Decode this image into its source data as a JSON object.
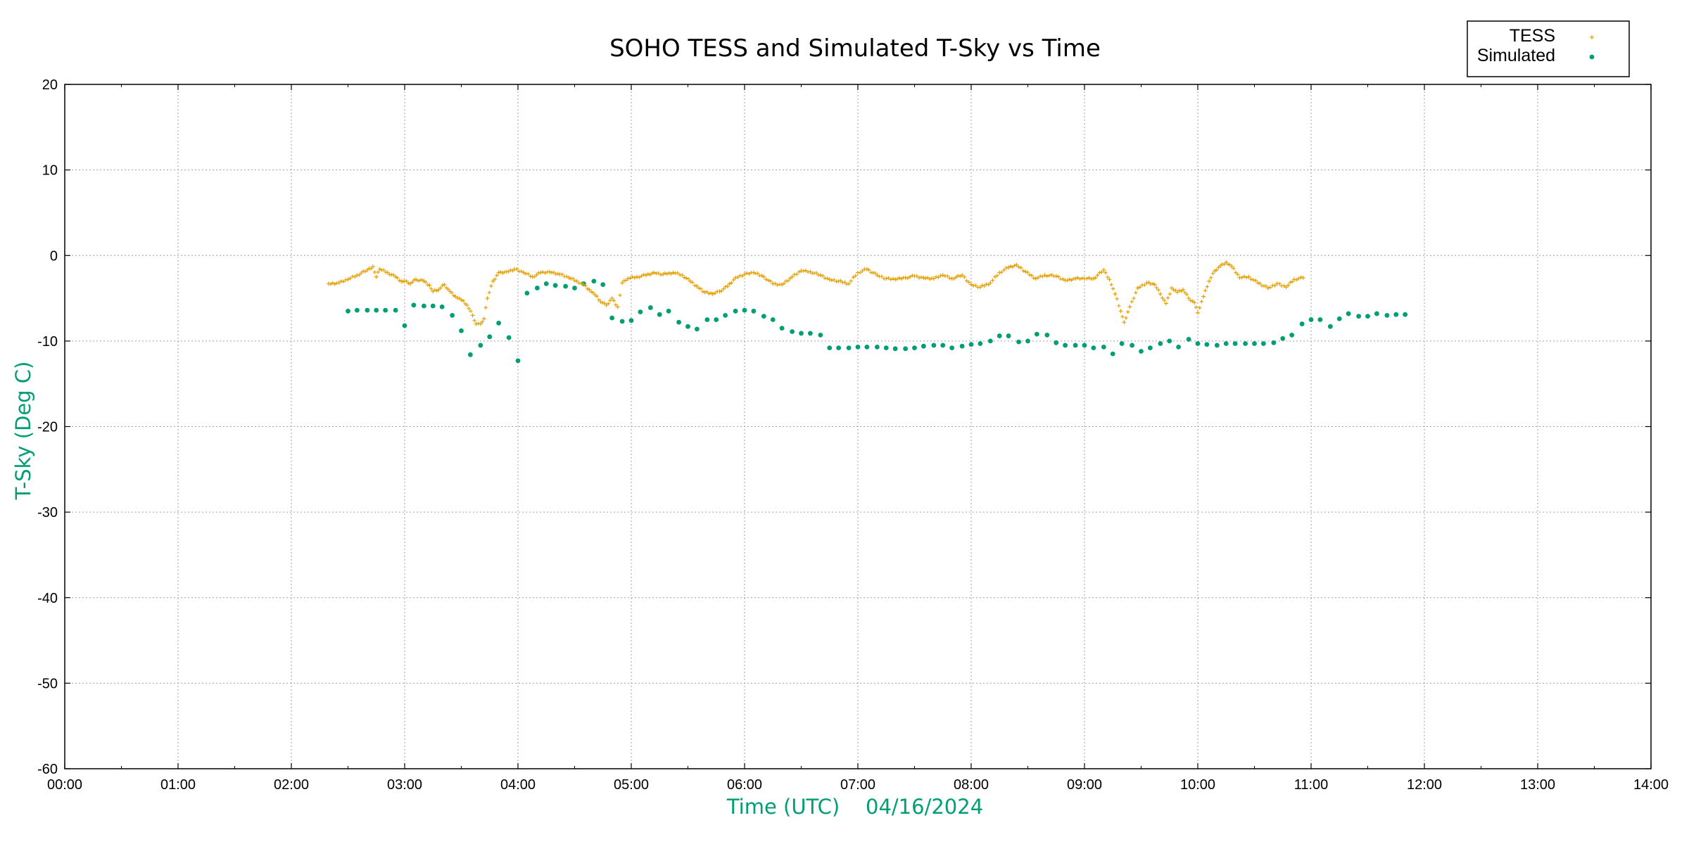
{
  "chart_data": {
    "type": "scatter",
    "title": "SOHO TESS and Simulated T-Sky vs Time",
    "xlabel": "Time (UTC)    04/16/2024",
    "ylabel": "T-Sky (Deg C)",
    "x_unit": "hours UTC",
    "xlim": [
      0,
      14
    ],
    "ylim": [
      -60,
      20
    ],
    "xticks": [
      "00:00",
      "01:00",
      "02:00",
      "03:00",
      "04:00",
      "05:00",
      "06:00",
      "07:00",
      "08:00",
      "09:00",
      "10:00",
      "11:00",
      "12:00",
      "13:00",
      "14:00"
    ],
    "yticks": [
      "20",
      "10",
      "0",
      "-10",
      "-20",
      "-30",
      "-40",
      "-50",
      "-60"
    ],
    "grid": true,
    "legend_position": "top-right (outside plot)",
    "colors": {
      "tess": "#e69f00",
      "simulated": "#009e73",
      "axis_label": "#009e73"
    },
    "series": [
      {
        "name": "TESS",
        "marker": "plus",
        "x": [
          2.33,
          2.42,
          2.5,
          2.58,
          2.67,
          2.72,
          2.75,
          2.78,
          2.85,
          2.92,
          2.97,
          3.0,
          3.05,
          3.1,
          3.17,
          3.22,
          3.25,
          3.3,
          3.35,
          3.4,
          3.45,
          3.5,
          3.55,
          3.6,
          3.63,
          3.67,
          3.7,
          3.73,
          3.78,
          3.83,
          3.9,
          3.97,
          4.05,
          4.13,
          4.2,
          4.28,
          4.37,
          4.45,
          4.52,
          4.58,
          4.63,
          4.68,
          4.73,
          4.78,
          4.83,
          4.88,
          4.92,
          4.97,
          5.05,
          5.13,
          5.2,
          5.28,
          5.37,
          5.45,
          5.52,
          5.58,
          5.65,
          5.72,
          5.78,
          5.85,
          5.92,
          6.0,
          6.08,
          6.17,
          6.25,
          6.33,
          6.42,
          6.5,
          6.58,
          6.67,
          6.75,
          6.83,
          6.92,
          7.0,
          7.08,
          7.17,
          7.25,
          7.33,
          7.42,
          7.5,
          7.58,
          7.67,
          7.75,
          7.83,
          7.92,
          8.0,
          8.08,
          8.17,
          8.25,
          8.33,
          8.4,
          8.48,
          8.57,
          8.65,
          8.75,
          8.83,
          8.92,
          9.0,
          9.08,
          9.17,
          9.22,
          9.27,
          9.32,
          9.35,
          9.4,
          9.47,
          9.55,
          9.62,
          9.67,
          9.72,
          9.77,
          9.82,
          9.87,
          9.92,
          9.97,
          10.0,
          10.05,
          10.1,
          10.15,
          10.2,
          10.25,
          10.3,
          10.37,
          10.45,
          10.53,
          10.62,
          10.7,
          10.78,
          10.85,
          10.93
        ],
        "y": [
          -3.3,
          -3.2,
          -2.8,
          -2.3,
          -1.7,
          -1.3,
          -2.5,
          -1.6,
          -2.0,
          -2.5,
          -3.0,
          -3.0,
          -3.3,
          -2.8,
          -3.0,
          -3.5,
          -4.2,
          -4.0,
          -3.4,
          -4.2,
          -4.8,
          -5.2,
          -5.8,
          -7.0,
          -8.0,
          -8.0,
          -7.4,
          -5.0,
          -3.0,
          -2.0,
          -1.9,
          -1.6,
          -2.0,
          -2.5,
          -2.0,
          -1.9,
          -2.2,
          -2.6,
          -3.0,
          -3.4,
          -4.0,
          -4.6,
          -5.4,
          -5.8,
          -5.0,
          -6.0,
          -3.2,
          -2.7,
          -2.5,
          -2.3,
          -2.0,
          -2.2,
          -2.0,
          -2.3,
          -3.0,
          -3.6,
          -4.3,
          -4.5,
          -4.2,
          -3.6,
          -2.6,
          -2.2,
          -2.0,
          -2.5,
          -3.3,
          -3.4,
          -2.5,
          -1.8,
          -1.9,
          -2.3,
          -2.8,
          -3.0,
          -3.3,
          -2.0,
          -1.6,
          -2.3,
          -2.7,
          -2.8,
          -2.6,
          -2.4,
          -2.6,
          -2.7,
          -2.3,
          -2.7,
          -2.3,
          -3.4,
          -3.7,
          -3.2,
          -2.0,
          -1.4,
          -1.1,
          -1.9,
          -2.7,
          -2.3,
          -2.4,
          -2.9,
          -2.7,
          -2.7,
          -2.7,
          -1.7,
          -2.8,
          -4.5,
          -6.5,
          -7.8,
          -6.0,
          -3.8,
          -3.2,
          -3.4,
          -4.5,
          -5.6,
          -3.8,
          -4.3,
          -4.0,
          -5.0,
          -5.5,
          -6.7,
          -4.8,
          -3.0,
          -1.8,
          -1.2,
          -0.8,
          -1.3,
          -2.6,
          -2.5,
          -3.2,
          -3.8,
          -3.3,
          -3.7,
          -2.8,
          -2.6
        ]
      },
      {
        "name": "Simulated",
        "marker": "dot",
        "x": [
          2.5,
          2.58,
          2.67,
          2.75,
          2.83,
          2.92,
          3.0,
          3.08,
          3.17,
          3.25,
          3.33,
          3.42,
          3.5,
          3.58,
          3.67,
          3.75,
          3.83,
          3.92,
          4.0,
          4.08,
          4.17,
          4.25,
          4.33,
          4.42,
          4.5,
          4.58,
          4.67,
          4.75,
          4.83,
          4.92,
          5.0,
          5.08,
          5.17,
          5.25,
          5.33,
          5.42,
          5.5,
          5.58,
          5.67,
          5.75,
          5.83,
          5.92,
          6.0,
          6.08,
          6.17,
          6.25,
          6.33,
          6.42,
          6.5,
          6.58,
          6.67,
          6.75,
          6.83,
          6.92,
          7.0,
          7.08,
          7.17,
          7.25,
          7.33,
          7.42,
          7.5,
          7.58,
          7.67,
          7.75,
          7.83,
          7.92,
          8.0,
          8.08,
          8.17,
          8.25,
          8.33,
          8.42,
          8.5,
          8.58,
          8.67,
          8.75,
          8.83,
          8.92,
          9.0,
          9.08,
          9.17,
          9.25,
          9.33,
          9.42,
          9.5,
          9.58,
          9.67,
          9.75,
          9.83,
          9.92,
          10.0,
          10.08,
          10.17,
          10.25,
          10.33,
          10.42,
          10.5,
          10.58,
          10.67,
          10.75,
          10.83,
          10.92,
          11.0,
          11.08,
          11.17,
          11.25,
          11.33,
          11.42,
          11.5,
          11.58,
          11.67,
          11.75,
          11.83
        ],
        "y": [
          -6.5,
          -6.4,
          -6.4,
          -6.4,
          -6.4,
          -6.4,
          -8.2,
          -5.8,
          -5.9,
          -5.9,
          -6.0,
          -7.0,
          -8.8,
          -11.6,
          -10.5,
          -9.5,
          -7.9,
          -9.6,
          -12.3,
          -4.4,
          -3.8,
          -3.3,
          -3.5,
          -3.6,
          -3.8,
          -3.3,
          -3.0,
          -3.4,
          -7.3,
          -7.7,
          -7.6,
          -6.6,
          -6.1,
          -6.9,
          -6.5,
          -7.8,
          -8.3,
          -8.6,
          -7.5,
          -7.5,
          -7.0,
          -6.5,
          -6.4,
          -6.5,
          -7.1,
          -7.5,
          -8.5,
          -8.9,
          -9.1,
          -9.1,
          -9.3,
          -10.8,
          -10.8,
          -10.8,
          -10.7,
          -10.7,
          -10.7,
          -10.8,
          -10.9,
          -10.9,
          -10.8,
          -10.6,
          -10.5,
          -10.5,
          -10.8,
          -10.6,
          -10.4,
          -10.3,
          -10.0,
          -9.4,
          -9.4,
          -10.1,
          -10.0,
          -9.2,
          -9.3,
          -10.2,
          -10.5,
          -10.5,
          -10.5,
          -10.8,
          -10.7,
          -11.5,
          -10.3,
          -10.5,
          -11.2,
          -10.8,
          -10.3,
          -10.0,
          -10.7,
          -9.8,
          -10.3,
          -10.4,
          -10.5,
          -10.3,
          -10.3,
          -10.3,
          -10.3,
          -10.3,
          -10.2,
          -9.7,
          -9.3,
          -8.0,
          -7.5,
          -7.5,
          -8.3,
          -7.4,
          -6.8,
          -7.1,
          -7.1,
          -6.8,
          -7.0,
          -6.9,
          -6.9
        ]
      }
    ]
  }
}
